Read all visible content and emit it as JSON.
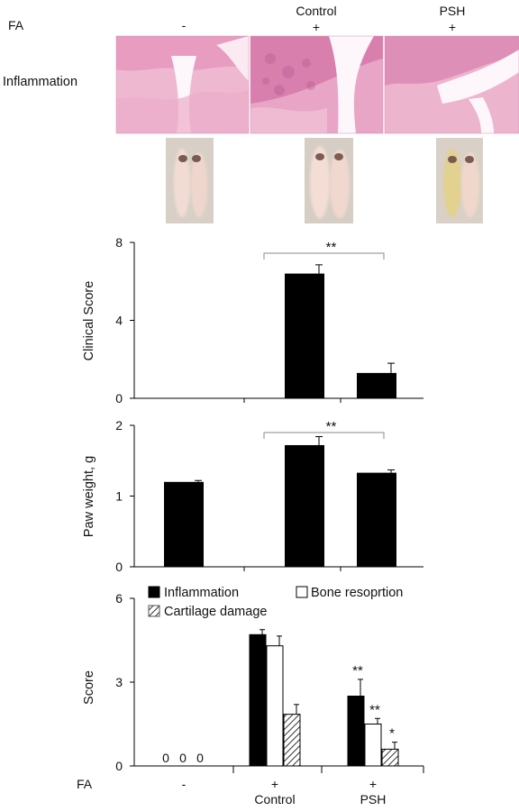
{
  "top_panel": {
    "fa_label": "FA",
    "row_label": "Inflammation",
    "groups": [
      {
        "name": "",
        "fa": "-"
      },
      {
        "name": "Control",
        "fa": "+"
      },
      {
        "name": "PSH",
        "fa": "+"
      }
    ],
    "colors": {
      "he_stain": "#e6a9c4",
      "tissue": "#f3d3dc",
      "paw_photo_bg": "#d7cdc2"
    }
  },
  "chart_data": [
    {
      "type": "bar",
      "ylabel": "Clinical Score",
      "ylim": [
        0,
        8
      ],
      "yticks": [
        0,
        4,
        8
      ],
      "categories": [
        "-",
        "Control",
        "PSH"
      ],
      "values": [
        0,
        6.4,
        1.3
      ],
      "errors": [
        0,
        0.45,
        0.5
      ],
      "significance": [
        {
          "from": "Control",
          "to": "PSH",
          "label": "**"
        }
      ],
      "bar_color": "#000000"
    },
    {
      "type": "bar",
      "ylabel": "Paw weight, g",
      "ylim": [
        0,
        2
      ],
      "yticks": [
        0,
        1,
        2
      ],
      "categories": [
        "-",
        "Control",
        "PSH"
      ],
      "values": [
        1.2,
        1.72,
        1.33
      ],
      "errors": [
        0.02,
        0.12,
        0.04
      ],
      "significance": [
        {
          "from": "Control",
          "to": "PSH",
          "label": "**"
        }
      ],
      "bar_color": "#000000"
    },
    {
      "type": "bar",
      "ylabel": "Score",
      "ylim": [
        0,
        6
      ],
      "yticks": [
        0,
        3,
        6
      ],
      "categories": [
        "-",
        "Control",
        "PSH"
      ],
      "series": [
        {
          "name": "Inflammation",
          "values": [
            0,
            4.7,
            2.5
          ],
          "errors": [
            0,
            0.18,
            0.6
          ],
          "stars": [
            "0",
            "",
            "**"
          ],
          "fill": "#000000"
        },
        {
          "name": "Bone resoprtion",
          "values": [
            0,
            4.3,
            1.5
          ],
          "errors": [
            0,
            0.35,
            0.2
          ],
          "stars": [
            "0",
            "",
            "**"
          ],
          "fill": "#ffffff"
        },
        {
          "name": "Cartilage damage",
          "values": [
            0,
            1.85,
            0.6
          ],
          "errors": [
            0,
            0.35,
            0.25
          ],
          "stars": [
            "0",
            "",
            "*"
          ],
          "fill": "hatch"
        }
      ],
      "legend_position": "top",
      "x_fa_label": "FA",
      "x_fa_row": [
        "-",
        "+",
        "+"
      ],
      "x_group_names": [
        "",
        "Control",
        "PSH"
      ]
    }
  ]
}
